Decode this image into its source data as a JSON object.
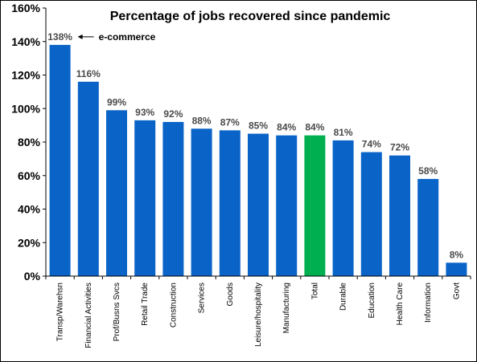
{
  "chart_data": {
    "type": "bar",
    "title": "Percentage of jobs recovered since pandemic",
    "xlabel": "",
    "ylabel": "",
    "categories": [
      "Transp/Warehsn",
      "Financial Activities",
      "Prof/Busns Svcs",
      "Retail Trade",
      "Construction",
      "Services",
      "Goods",
      "Leisure/hospitality",
      "Manufacturing",
      "Total",
      "Durable",
      "Education",
      "Health Care",
      "Information",
      "Govt"
    ],
    "values": [
      138,
      116,
      99,
      93,
      92,
      88,
      87,
      85,
      84,
      84,
      81,
      74,
      72,
      58,
      8
    ],
    "data_labels": [
      "138%",
      "116%",
      "99%",
      "93%",
      "92%",
      "88%",
      "87%",
      "85%",
      "84%",
      "84%",
      "81%",
      "74%",
      "72%",
      "58%",
      "8%"
    ],
    "yticks": [
      0,
      20,
      40,
      60,
      80,
      100,
      120,
      140,
      160
    ],
    "ytick_labels": [
      "0%",
      "20%",
      "40%",
      "60%",
      "80%",
      "100%",
      "120%",
      "140%",
      "160%"
    ],
    "ylim": [
      0,
      160
    ],
    "grid": false,
    "colors": {
      "bar": "#0a64c8",
      "highlight": "#00b050",
      "highlight_category": "Total"
    },
    "annotation": {
      "text": "e-commerce",
      "category": "Transp/Warehsn",
      "arrow": "left"
    }
  }
}
